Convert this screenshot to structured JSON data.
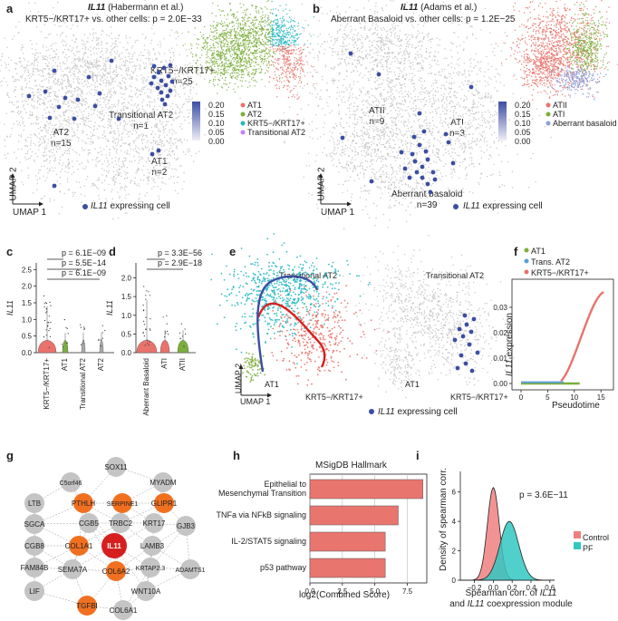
{
  "panel_letters": {
    "a": "a",
    "b": "b",
    "c": "c",
    "d": "d",
    "e": "e",
    "f": "f",
    "g": "g",
    "h": "h",
    "i": "i"
  },
  "colors": {
    "at1": "#e8736c",
    "at2": "#7cae3c",
    "krt": "#27b8c2",
    "trans": "#c77cff",
    "expr": "#3b4ea3",
    "cloud": "#c4c4c4",
    "bar": "#e9756f",
    "control": "#f08080",
    "pf": "#33c7c2",
    "node_red": "#d62020",
    "node_orange": "#f07020",
    "node_gray": "#c4c4c4"
  },
  "panel_a": {
    "gene": "IL11",
    "source": "(Habermann et al.)",
    "subtitle": "KRT5−/KRT17+ vs. other cells: p = 2.0E−33",
    "axis_x": "UMAP 1",
    "axis_y": "UMAP 2",
    "clusters": [
      {
        "label": "KRT5−/KRT17+",
        "n": "n=25"
      },
      {
        "label": "Transitional AT2",
        "n": "n=1"
      },
      {
        "label": "AT2",
        "n": "n=15"
      },
      {
        "label": "AT1",
        "n": "n=2"
      }
    ],
    "scale_ticks": [
      "0.20",
      "0.15",
      "0.10",
      "0.05",
      "0.00"
    ],
    "legend": [
      "AT1",
      "AT2",
      "KRT5−/KRT17+",
      "Transitional AT2"
    ],
    "expr_legend": "expressing cell"
  },
  "panel_b": {
    "gene": "IL11",
    "source": "(Adams et al.)",
    "subtitle": "Aberrant Basaloid vs. other cells: p = 1.2E−25",
    "axis_x": "UMAP 1",
    "axis_y": "UMAP 2",
    "clusters": [
      {
        "label": "ATII",
        "n": "n=9"
      },
      {
        "label": "ATI",
        "n": "n=3"
      },
      {
        "label": "Aberrant basaloid",
        "n": "n=39"
      }
    ],
    "scale_ticks": [
      "0.20",
      "0.15",
      "0.10",
      "0.05",
      "0.00"
    ],
    "legend": [
      "ATII",
      "ATI",
      "Aberrant basaloid"
    ],
    "expr_legend": "expressing cell"
  },
  "panel_c": {
    "ylabel": "IL11",
    "pvals": [
      "p = 6.1E−09",
      "p = 5.5E−14",
      "p = 6.1E−09"
    ],
    "categories": [
      "KRT5−/KRT17+",
      "AT1",
      "Transitional AT2",
      "AT2"
    ],
    "yticks": [
      "0.0",
      "0.5",
      "1.0",
      "1.5",
      "2.0",
      "2.5"
    ],
    "ylim": [
      0,
      2.7
    ]
  },
  "panel_d": {
    "ylabel": "IL11",
    "pvals": [
      "p = 3.3E−56",
      "p = 2.9E−18"
    ],
    "categories": [
      "Aberrant Basaloid",
      "ATI",
      "ATII"
    ],
    "yticks": [
      "0.0",
      "0.5",
      "1.0",
      "1.5",
      "2.0"
    ],
    "ylim": [
      0,
      2.4
    ]
  },
  "panel_e": {
    "labels": [
      "Transitional AT2",
      "AT1",
      "KRT5−/KRT17+"
    ],
    "labels2": [
      "Transitional AT2",
      "AT1",
      "KRT5−/KRT17+"
    ],
    "axis_x": "UMAP 1",
    "axis_y": "UMAP 2",
    "expr_legend": "expressing cell"
  },
  "panel_f": {
    "legend": [
      "AT1",
      "Trans. AT2",
      "KRT5−/KRT17+"
    ],
    "xlabel": "Pseudotime",
    "ylabel": "expression",
    "gene": "IL11",
    "xticks": [
      "0",
      "5",
      "10",
      "15"
    ],
    "yticks": [
      "0.00",
      "0.01",
      "0.02",
      "0.03"
    ]
  },
  "panel_g": {
    "nodes": [
      {
        "id": "SOX11",
        "type": "gray"
      },
      {
        "id": "C5orf46",
        "type": "gray"
      },
      {
        "id": "MYADM",
        "type": "gray"
      },
      {
        "id": "LTB",
        "type": "gray"
      },
      {
        "id": "PTHLH",
        "type": "orange"
      },
      {
        "id": "SERPINE1",
        "type": "orange"
      },
      {
        "id": "GLIPR1",
        "type": "orange"
      },
      {
        "id": "SGCA",
        "type": "gray"
      },
      {
        "id": "CGB5",
        "type": "gray"
      },
      {
        "id": "TRBC2",
        "type": "gray"
      },
      {
        "id": "KRT17",
        "type": "gray"
      },
      {
        "id": "GJB3",
        "type": "gray"
      },
      {
        "id": "CGB8",
        "type": "gray"
      },
      {
        "id": "COL1A1",
        "type": "orange"
      },
      {
        "id": "IL11",
        "type": "red"
      },
      {
        "id": "LAMB3",
        "type": "gray"
      },
      {
        "id": "FAM84B",
        "type": "gray"
      },
      {
        "id": "SEMA7A",
        "type": "gray"
      },
      {
        "id": "COL6A2",
        "type": "orange"
      },
      {
        "id": "KRTAP2.3",
        "type": "gray"
      },
      {
        "id": "ADAMTS1",
        "type": "gray"
      },
      {
        "id": "LIF",
        "type": "gray"
      },
      {
        "id": "WNT10A",
        "type": "gray"
      },
      {
        "id": "TGFBI",
        "type": "orange"
      },
      {
        "id": "COL6A1",
        "type": "gray"
      }
    ]
  },
  "chart_data": [
    {
      "type": "bar",
      "title": "MSigDB Hallmark",
      "categories": [
        "Epithelial to Mesenchymal Transition",
        "TNFa via NFkB signaling",
        "IL-2/STAT5 signaling",
        "p53 pathway"
      ],
      "cat_lines": [
        [
          "Epithelial to",
          "Mesenchymal Transition"
        ],
        [
          "TNFa via NFkB signaling"
        ],
        [
          "IL-2/STAT5 signaling"
        ],
        [
          "p53 pathway"
        ]
      ],
      "values": [
        8.7,
        6.8,
        5.8,
        5.8
      ],
      "xlabel": "log2(Combined Score)",
      "xticks": [
        "0.0",
        "2.5",
        "5.0",
        "7.5"
      ],
      "xlim": [
        0,
        9
      ]
    },
    {
      "type": "area",
      "annotation": "p = 3.6E−11",
      "xlabel1": "Spearman corr. of",
      "xlabel2": "and",
      "xlabel3": "coexpression module",
      "gene": "IL11",
      "ylabel": "Density of spearman corr.",
      "xticks": [
        "−0.2",
        "0.0",
        "0.2",
        "0.4",
        "0.6"
      ],
      "yticks": [
        "0",
        "2",
        "4",
        "6"
      ],
      "xlim": [
        -0.35,
        0.65
      ],
      "ylim": [
        0,
        7.4
      ],
      "series": [
        {
          "name": "Control",
          "mean": 0.0,
          "sd": 0.063,
          "peak": 6.3
        },
        {
          "name": "PF",
          "mean": 0.17,
          "sd": 0.1,
          "peak": 4.0
        }
      ]
    }
  ]
}
